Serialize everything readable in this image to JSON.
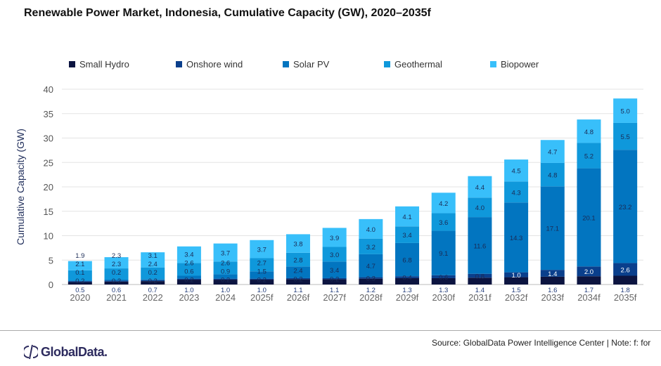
{
  "title": "Renewable Power Market, Indonesia, Cumulative Capacity (GW), 2020–2035f",
  "source": "Source: GlobalData Power Intelligence Center | Note: f: for",
  "logo_text": "GlobalData.",
  "chart_data": {
    "type": "bar",
    "stacked": true,
    "title": "Renewable Power Market, Indonesia, Cumulative Capacity (GW), 2020–2035f",
    "xlabel": "",
    "ylabel": "Cumulative Capacity (GW)",
    "ylim": [
      0,
      40
    ],
    "yticks": [
      0,
      5,
      10,
      15,
      20,
      25,
      30,
      35,
      40
    ],
    "grid": true,
    "legend": "top",
    "categories": [
      "2020",
      "2021",
      "2022",
      "2023",
      "2024",
      "2025f",
      "2026f",
      "2027f",
      "2028f",
      "2029f",
      "2030f",
      "2031f",
      "2032f",
      "2033f",
      "2034f",
      "2035f"
    ],
    "series": [
      {
        "name": "Small Hydro",
        "color": "#0c1440",
        "values": [
          0.5,
          0.6,
          0.7,
          1.0,
          1.0,
          1.0,
          1.1,
          1.1,
          1.2,
          1.3,
          1.3,
          1.4,
          1.5,
          1.6,
          1.7,
          1.8
        ]
      },
      {
        "name": "Onshore wind",
        "color": "#0a3f8c",
        "values": [
          0.2,
          0.2,
          0.2,
          0.2,
          0.2,
          0.2,
          0.2,
          0.2,
          0.3,
          0.4,
          0.6,
          0.8,
          1.0,
          1.4,
          2.0,
          2.6
        ]
      },
      {
        "name": "Solar PV",
        "color": "#0275c0",
        "values": [
          0.1,
          0.2,
          0.2,
          0.6,
          0.9,
          1.5,
          2.4,
          3.4,
          4.7,
          6.8,
          9.1,
          11.6,
          14.3,
          17.1,
          20.1,
          23.2
        ]
      },
      {
        "name": "Geothermal",
        "color": "#0f98db",
        "values": [
          2.1,
          2.3,
          2.4,
          2.6,
          2.6,
          2.7,
          2.8,
          3.0,
          3.2,
          3.4,
          3.6,
          4.0,
          4.3,
          4.8,
          5.2,
          5.5
        ]
      },
      {
        "name": "Biopower",
        "color": "#38bffa",
        "values": [
          1.9,
          2.3,
          3.1,
          3.4,
          3.7,
          3.7,
          3.8,
          3.9,
          4.0,
          4.1,
          4.2,
          4.4,
          4.5,
          4.7,
          4.8,
          5.0
        ]
      }
    ]
  }
}
